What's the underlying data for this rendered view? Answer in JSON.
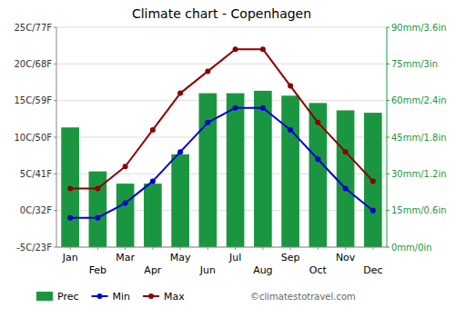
{
  "chart_data": {
    "type": "combo",
    "title": "Climate chart - Copenhagen",
    "categories": [
      "Jan",
      "Feb",
      "Mar",
      "Apr",
      "May",
      "Jun",
      "Jul",
      "Aug",
      "Sep",
      "Oct",
      "Nov",
      "Dec"
    ],
    "series": [
      {
        "name": "Prec",
        "type": "bar",
        "axis": "y2",
        "color": "#1a9641",
        "values": [
          49,
          31,
          26,
          26,
          38,
          63,
          63,
          64,
          62,
          59,
          56,
          55
        ]
      },
      {
        "name": "Min",
        "type": "line",
        "color": "#0000cc",
        "marker": "circle",
        "values": [
          -1,
          -1,
          1,
          4,
          8,
          12,
          14,
          14,
          11,
          7,
          3,
          0
        ]
      },
      {
        "name": "Max",
        "type": "line",
        "color": "#8b0000",
        "marker": "circle",
        "values": [
          3,
          3,
          6,
          11,
          16,
          19,
          22,
          22,
          17,
          12,
          8,
          4
        ]
      }
    ],
    "ylim": [
      -5,
      25
    ],
    "yticks": [
      {
        "value": -5,
        "label": "-5C/23F"
      },
      {
        "value": 0,
        "label": "0C/32F"
      },
      {
        "value": 5,
        "label": "5C/41F"
      },
      {
        "value": 10,
        "label": "10C/50F"
      },
      {
        "value": 15,
        "label": "15C/59F"
      },
      {
        "value": 20,
        "label": "20C/68F"
      },
      {
        "value": 25,
        "label": "25C/77F"
      }
    ],
    "y2lim": [
      0,
      90
    ],
    "y2ticks": [
      {
        "value": 0,
        "label": "0mm/0in"
      },
      {
        "value": 15,
        "label": "15mm/0.6in"
      },
      {
        "value": 30,
        "label": "30mm/1.2in"
      },
      {
        "value": 45,
        "label": "45mm/1.8in"
      },
      {
        "value": 60,
        "label": "60mm/2.4in"
      },
      {
        "value": 75,
        "label": "75mm/3in"
      },
      {
        "value": 90,
        "label": "90mm/3.6in"
      }
    ],
    "grid": true,
    "legend": "bottom",
    "annotations": [
      "©climatestotravel.com"
    ]
  }
}
